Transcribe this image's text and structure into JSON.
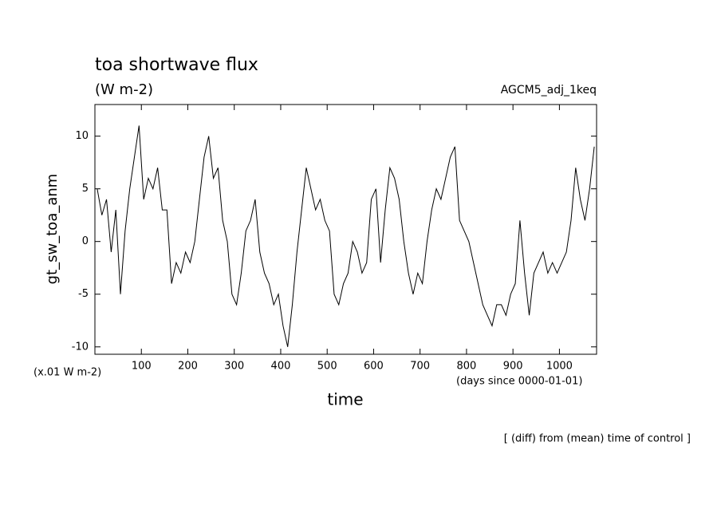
{
  "chart_data": {
    "type": "line",
    "title": "toa shortwave flux",
    "subtitle": "(W m-2)",
    "experiment": "AGCM5_adj_1keq",
    "y_label": "gt_sw_toa_anm",
    "y_unit": "(x.01 W m-2)",
    "x_label": "time",
    "x_unit": "(days since 0000-01-01)",
    "note": "[ (diff) from (mean) time of control ]",
    "x": [
      5,
      15,
      25,
      35,
      45,
      55,
      65,
      75,
      85,
      95,
      105,
      115,
      125,
      135,
      145,
      155,
      165,
      175,
      185,
      195,
      205,
      215,
      225,
      235,
      245,
      255,
      265,
      275,
      285,
      295,
      305,
      315,
      325,
      335,
      345,
      355,
      365,
      375,
      385,
      395,
      405,
      415,
      425,
      435,
      445,
      455,
      465,
      475,
      485,
      495,
      505,
      515,
      525,
      535,
      545,
      555,
      565,
      575,
      585,
      595,
      605,
      615,
      625,
      635,
      645,
      655,
      665,
      675,
      685,
      695,
      705,
      715,
      725,
      735,
      745,
      755,
      765,
      775,
      785,
      795,
      805,
      815,
      825,
      835,
      845,
      855,
      865,
      875,
      885,
      895,
      905,
      915,
      925,
      935,
      945,
      955,
      965,
      975,
      985,
      995,
      1005,
      1015,
      1025,
      1035,
      1045,
      1055,
      1065,
      1075
    ],
    "series": [
      {
        "color": "#000000",
        "values": [
          5,
          2.5,
          4,
          -1,
          3,
          -5,
          1,
          5,
          8,
          11,
          4,
          6,
          5,
          7,
          3,
          3,
          -4,
          -2,
          -3,
          -1,
          -2,
          0,
          4,
          8,
          10,
          6,
          7,
          2,
          0,
          -5,
          -6,
          -3,
          1,
          2,
          4,
          -1,
          -3,
          -4,
          -6,
          -5,
          -8,
          -10,
          -6,
          -1,
          3,
          7,
          5,
          3,
          4,
          2,
          1,
          -5,
          -6,
          -4,
          -3,
          0,
          -1,
          -3,
          -2,
          4,
          5,
          -2,
          3,
          7,
          6,
          4,
          0,
          -3,
          -5,
          -3,
          -4,
          0,
          3,
          5,
          4,
          6,
          8,
          9,
          2,
          1,
          0,
          -2,
          -4,
          -6,
          -7,
          -8,
          -6,
          -6,
          -7,
          -5,
          -4,
          2,
          -3,
          -7,
          -3,
          -2,
          -1,
          -3,
          -2,
          -3,
          -2,
          -1,
          2,
          7,
          4,
          2,
          5,
          9
        ]
      }
    ],
    "xlim": [
      0,
      1080
    ],
    "ylim": [
      -10.7,
      13
    ],
    "xticks": [
      100,
      200,
      300,
      400,
      500,
      600,
      700,
      800,
      900,
      1000
    ],
    "yticks": [
      -10,
      -5,
      0,
      5,
      10
    ]
  }
}
